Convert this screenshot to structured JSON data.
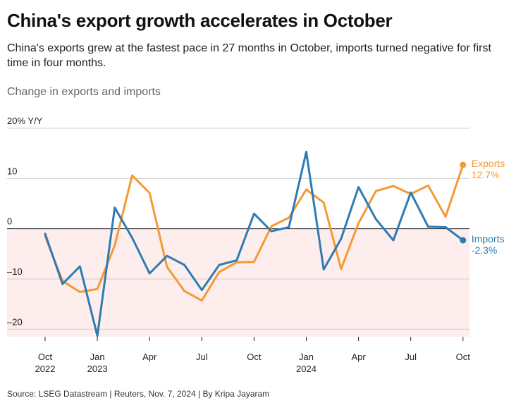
{
  "title": "China's export growth accelerates in October",
  "subtitle": "China's exports grew at the fastest pace in 27 months in October, imports turned negative for first time in four months.",
  "chart_heading": "Change in exports and imports",
  "source": "Source: LSEG Datastream | Reuters, Nov. 7, 2024 | By Kripa Jayaram",
  "colors": {
    "exports": "#f39a36",
    "imports": "#2f7bb3",
    "negative_band": "#fdeeed"
  },
  "chart_data": {
    "type": "line",
    "x": [
      "2022-10",
      "2022-11",
      "2022-12",
      "2023-01",
      "2023-02",
      "2023-03",
      "2023-04",
      "2023-05",
      "2023-06",
      "2023-07",
      "2023-08",
      "2023-09",
      "2023-10",
      "2023-11",
      "2023-12",
      "2024-01",
      "2024-02",
      "2024-03",
      "2024-04",
      "2024-05",
      "2024-06",
      "2024-07",
      "2024-08",
      "2024-09",
      "2024-10"
    ],
    "ylim": [
      -21.5,
      20
    ],
    "yticks": [
      {
        "value": 20,
        "label": "20% Y/Y"
      },
      {
        "value": 10,
        "label": "10"
      },
      {
        "value": 0,
        "label": "0"
      },
      {
        "value": -10,
        "label": "–10"
      },
      {
        "value": -20,
        "label": "–20"
      }
    ],
    "xticks": [
      {
        "x": "2022-10",
        "label": "Oct",
        "sublabel": "2022"
      },
      {
        "x": "2023-01",
        "label": "Jan",
        "sublabel": "2023"
      },
      {
        "x": "2023-04",
        "label": "Apr",
        "sublabel": ""
      },
      {
        "x": "2023-07",
        "label": "Jul",
        "sublabel": ""
      },
      {
        "x": "2023-10",
        "label": "Oct",
        "sublabel": ""
      },
      {
        "x": "2024-01",
        "label": "Jan",
        "sublabel": "2024"
      },
      {
        "x": "2024-04",
        "label": "Apr",
        "sublabel": ""
      },
      {
        "x": "2024-07",
        "label": "Jul",
        "sublabel": ""
      },
      {
        "x": "2024-10",
        "label": "Oct",
        "sublabel": ""
      }
    ],
    "series": [
      {
        "name": "Exports",
        "end_label": "12.7%",
        "values": [
          -1.5,
          -10.4,
          -12.6,
          -12.0,
          -3.3,
          10.6,
          7.1,
          -7.6,
          -12.4,
          -14.3,
          -8.6,
          -6.7,
          -6.6,
          0.5,
          2.2,
          7.8,
          5.2,
          -8.0,
          1.1,
          7.5,
          8.5,
          6.9,
          8.6,
          2.4,
          12.7
        ]
      },
      {
        "name": "Imports",
        "end_label": "-2.3%",
        "values": [
          -1.0,
          -11.0,
          -7.5,
          -21.3,
          4.2,
          -1.8,
          -8.9,
          -5.4,
          -7.2,
          -12.2,
          -7.2,
          -6.3,
          3.0,
          -0.5,
          0.3,
          15.3,
          -8.1,
          -2.0,
          8.3,
          1.9,
          -2.3,
          7.2,
          0.4,
          0.3,
          -2.3
        ]
      }
    ]
  }
}
